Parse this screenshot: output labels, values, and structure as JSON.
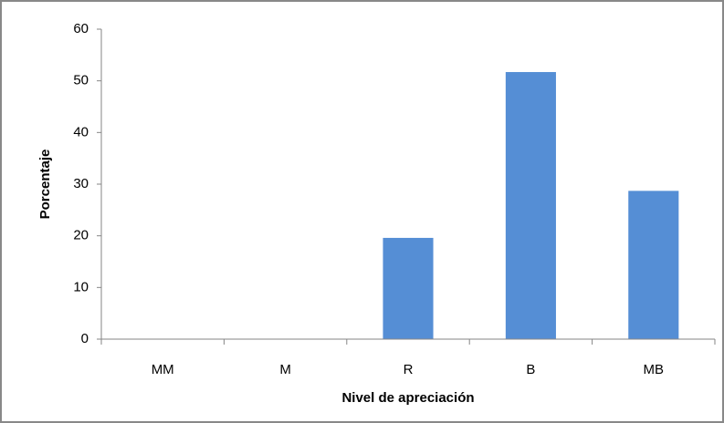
{
  "chart_data": {
    "type": "bar",
    "x_label": "Nivel de apreciación",
    "y_label": "Porcentaje",
    "categories": [
      "MM",
      "M",
      "R",
      "B",
      "MB"
    ],
    "values": [
      0,
      0,
      19.6,
      51.7,
      28.7
    ],
    "color": "#558ed5",
    "ylim": [
      0,
      60
    ],
    "yticks": [
      0,
      10,
      20,
      30,
      40,
      50,
      60
    ],
    "grid": false
  }
}
